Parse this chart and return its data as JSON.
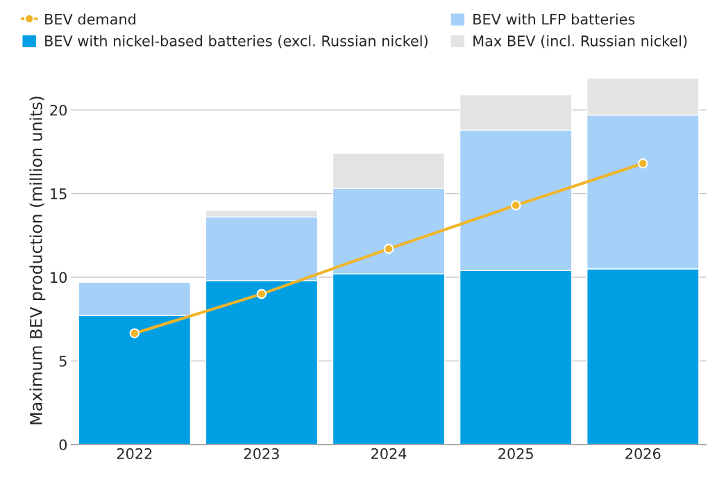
{
  "chart_data": {
    "type": "bar",
    "stacked": true,
    "ylabel": "Maximum BEV production (million units)",
    "categories": [
      "2022",
      "2023",
      "2024",
      "2025",
      "2026"
    ],
    "series": [
      {
        "name": "BEV with nickel-based batteries (excl. Russian nickel)",
        "color": "#009fe3",
        "values": [
          7.7,
          9.8,
          10.2,
          10.4,
          10.5
        ]
      },
      {
        "name": "BEV with LFP batteries",
        "color": "#a5d0f8",
        "values": [
          2.0,
          3.8,
          5.1,
          8.4,
          9.2
        ]
      },
      {
        "name": "Max BEV (incl. Russian nickel)",
        "color": "#e3e3e3",
        "values": [
          null,
          0.4,
          2.1,
          2.1,
          2.2
        ]
      },
      {
        "name": "BEV demand",
        "type": "line",
        "color": "#f0b429",
        "values": [
          6.65,
          9.0,
          11.7,
          14.3,
          16.8
        ]
      }
    ],
    "ylim": [
      0,
      22
    ],
    "yticks": [
      0,
      5,
      10,
      15,
      20
    ],
    "grid": "y",
    "legend": "top",
    "marker": "circle"
  }
}
